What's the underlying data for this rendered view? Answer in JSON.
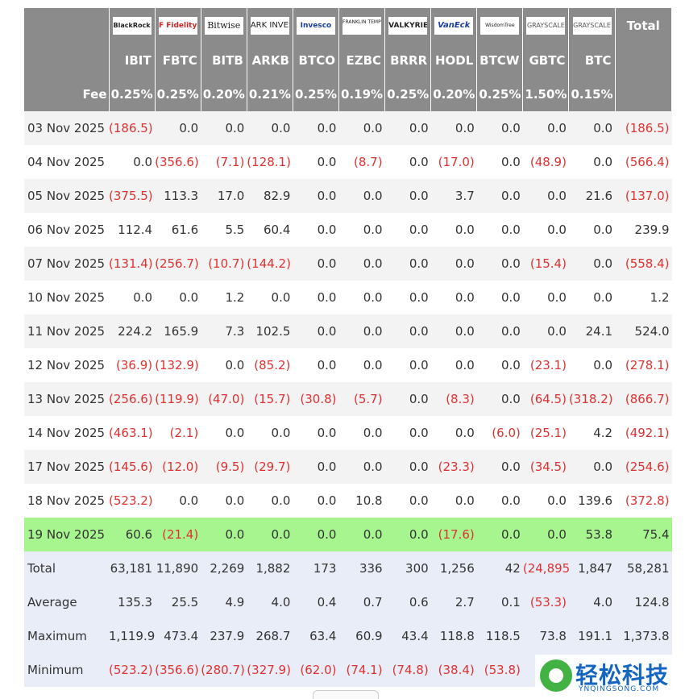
{
  "header": {
    "logos": [
      {
        "name": "blackrock-logo",
        "text": "BlackRock"
      },
      {
        "name": "fidelity-logo",
        "text": "F Fidelity"
      },
      {
        "name": "bitwise-logo",
        "text": "Bitwise"
      },
      {
        "name": "ark-invest-logo",
        "text": "ARK INVEST"
      },
      {
        "name": "invesco-logo",
        "text": "Invesco"
      },
      {
        "name": "franklin-templeton-logo",
        "text": "FRANKLIN TEMPLETON"
      },
      {
        "name": "valkyrie-logo",
        "text": "VALKYRIE"
      },
      {
        "name": "vaneck-logo",
        "text": "VanEck"
      },
      {
        "name": "wisdomtree-logo",
        "text": "WisdomTree"
      },
      {
        "name": "grayscale-gbtc-logo",
        "text": "GRAYSCALE"
      },
      {
        "name": "grayscale-btc-logo",
        "text": "GRAYSCALE"
      }
    ],
    "total_label": "Total",
    "tickers": [
      "IBIT",
      "FBTC",
      "BITB",
      "ARKB",
      "BTCO",
      "EZBC",
      "BRRR",
      "HODL",
      "BTCW",
      "GBTC",
      "BTC"
    ],
    "fee_label": "Fee",
    "fees": [
      "0.25%",
      "0.25%",
      "0.20%",
      "0.21%",
      "0.25%",
      "0.19%",
      "0.25%",
      "0.20%",
      "0.25%",
      "1.50%",
      "0.15%"
    ]
  },
  "rows": [
    {
      "date": "03 Nov 2025",
      "values": [
        "(186.5)",
        "0.0",
        "0.0",
        "0.0",
        "0.0",
        "0.0",
        "0.0",
        "0.0",
        "0.0",
        "0.0",
        "0.0",
        "(186.5)"
      ],
      "highlight": false
    },
    {
      "date": "04 Nov 2025",
      "values": [
        "0.0",
        "(356.6)",
        "(7.1)",
        "(128.1)",
        "0.0",
        "(8.7)",
        "0.0",
        "(17.0)",
        "0.0",
        "(48.9)",
        "0.0",
        "(566.4)"
      ],
      "highlight": false
    },
    {
      "date": "05 Nov 2025",
      "values": [
        "(375.5)",
        "113.3",
        "17.0",
        "82.9",
        "0.0",
        "0.0",
        "0.0",
        "3.7",
        "0.0",
        "0.0",
        "21.6",
        "(137.0)"
      ],
      "highlight": false
    },
    {
      "date": "06 Nov 2025",
      "values": [
        "112.4",
        "61.6",
        "5.5",
        "60.4",
        "0.0",
        "0.0",
        "0.0",
        "0.0",
        "0.0",
        "0.0",
        "0.0",
        "239.9"
      ],
      "highlight": false
    },
    {
      "date": "07 Nov 2025",
      "values": [
        "(131.4)",
        "(256.7)",
        "(10.7)",
        "(144.2)",
        "0.0",
        "0.0",
        "0.0",
        "0.0",
        "0.0",
        "(15.4)",
        "0.0",
        "(558.4)"
      ],
      "highlight": false
    },
    {
      "date": "10 Nov 2025",
      "values": [
        "0.0",
        "0.0",
        "1.2",
        "0.0",
        "0.0",
        "0.0",
        "0.0",
        "0.0",
        "0.0",
        "0.0",
        "0.0",
        "1.2"
      ],
      "highlight": false
    },
    {
      "date": "11 Nov 2025",
      "values": [
        "224.2",
        "165.9",
        "7.3",
        "102.5",
        "0.0",
        "0.0",
        "0.0",
        "0.0",
        "0.0",
        "0.0",
        "24.1",
        "524.0"
      ],
      "highlight": false
    },
    {
      "date": "12 Nov 2025",
      "values": [
        "(36.9)",
        "(132.9)",
        "0.0",
        "(85.2)",
        "0.0",
        "0.0",
        "0.0",
        "0.0",
        "0.0",
        "(23.1)",
        "0.0",
        "(278.1)"
      ],
      "highlight": false
    },
    {
      "date": "13 Nov 2025",
      "values": [
        "(256.6)",
        "(119.9)",
        "(47.0)",
        "(15.7)",
        "(30.8)",
        "(5.7)",
        "0.0",
        "(8.3)",
        "0.0",
        "(64.5)",
        "(318.2)",
        "(866.7)"
      ],
      "highlight": false
    },
    {
      "date": "14 Nov 2025",
      "values": [
        "(463.1)",
        "(2.1)",
        "0.0",
        "0.0",
        "0.0",
        "0.0",
        "0.0",
        "0.0",
        "(6.0)",
        "(25.1)",
        "4.2",
        "(492.1)"
      ],
      "highlight": false
    },
    {
      "date": "17 Nov 2025",
      "values": [
        "(145.6)",
        "(12.0)",
        "(9.5)",
        "(29.7)",
        "0.0",
        "0.0",
        "0.0",
        "(23.3)",
        "0.0",
        "(34.5)",
        "0.0",
        "(254.6)"
      ],
      "highlight": false
    },
    {
      "date": "18 Nov 2025",
      "values": [
        "(523.2)",
        "0.0",
        "0.0",
        "0.0",
        "0.0",
        "10.8",
        "0.0",
        "0.0",
        "0.0",
        "0.0",
        "139.6",
        "(372.8)"
      ],
      "highlight": false
    },
    {
      "date": "19 Nov 2025",
      "values": [
        "60.6",
        "(21.4)",
        "0.0",
        "0.0",
        "0.0",
        "0.0",
        "0.0",
        "(17.6)",
        "0.0",
        "0.0",
        "53.8",
        "75.4"
      ],
      "highlight": true
    }
  ],
  "summary": [
    {
      "label": "Total",
      "values": [
        "63,181",
        "11,890",
        "2,269",
        "1,882",
        "173",
        "336",
        "300",
        "1,256",
        "42",
        "(24,895)",
        "1,847",
        "58,281"
      ]
    },
    {
      "label": "Average",
      "values": [
        "135.3",
        "25.5",
        "4.9",
        "4.0",
        "0.4",
        "0.7",
        "0.6",
        "2.7",
        "0.1",
        "(53.3)",
        "4.0",
        "124.8"
      ]
    },
    {
      "label": "Maximum",
      "values": [
        "1,119.9",
        "473.4",
        "237.9",
        "268.7",
        "63.4",
        "60.9",
        "43.4",
        "118.8",
        "118.5",
        "73.8",
        "191.1",
        "1,373.8"
      ]
    },
    {
      "label": "Minimum",
      "values": [
        "(523.2)",
        "(356.6)",
        "(280.7)",
        "(327.9)",
        "(62.0)",
        "(74.1)",
        "(74.8)",
        "(38.4)",
        "(53.8)",
        "(6",
        "",
        ""
      ]
    }
  ],
  "watermark": {
    "text": "轻松科技",
    "sub": "YNQINGSONG.COM"
  },
  "colors": {
    "header_bg": "#8b8b8b",
    "negative": "#e03131",
    "highlight": "#a6f58e",
    "summary_bg": "#e9edf7",
    "stripe": "#f3f3f3"
  }
}
